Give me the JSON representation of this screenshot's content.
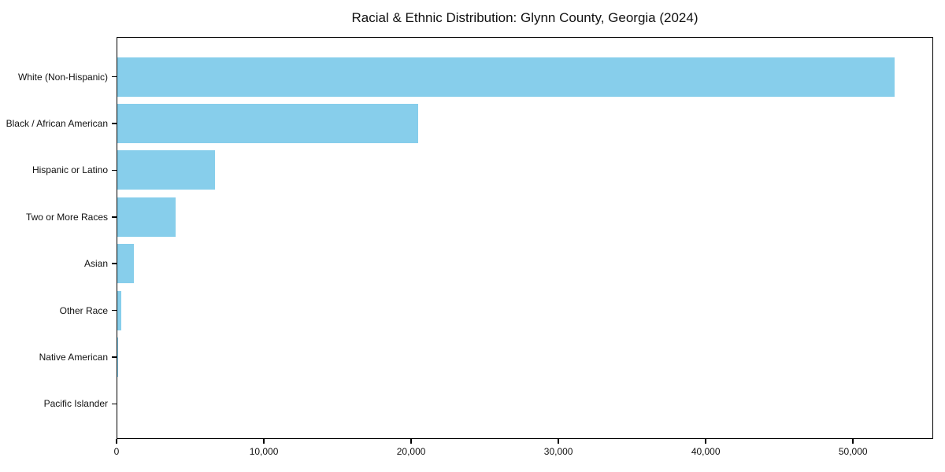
{
  "title": "Racial & Ethnic Distribution: Glynn County, Georgia (2024)",
  "chart_data": {
    "type": "bar",
    "orientation": "horizontal",
    "title": "Racial & Ethnic Distribution: Glynn County, Georgia (2024)",
    "xlabel": "",
    "ylabel": "",
    "categories": [
      "White (Non-Hispanic)",
      "Black / African American",
      "Hispanic or Latino",
      "Two or More Races",
      "Asian",
      "Other Race",
      "Native American",
      "Pacific Islander"
    ],
    "values": [
      52800,
      20500,
      6700,
      4000,
      1200,
      300,
      100,
      40
    ],
    "xlim": [
      0,
      55440
    ],
    "x_ticks": [
      0,
      10000,
      20000,
      30000,
      40000,
      50000
    ],
    "x_tick_labels": [
      "0",
      "10,000",
      "20,000",
      "30,000",
      "40,000",
      "50,000"
    ],
    "grid": false,
    "legend": false,
    "bar_color": "#87CEEB",
    "spine_color": "#000000",
    "text_color": "#111111",
    "background_color": "#ffffff"
  }
}
